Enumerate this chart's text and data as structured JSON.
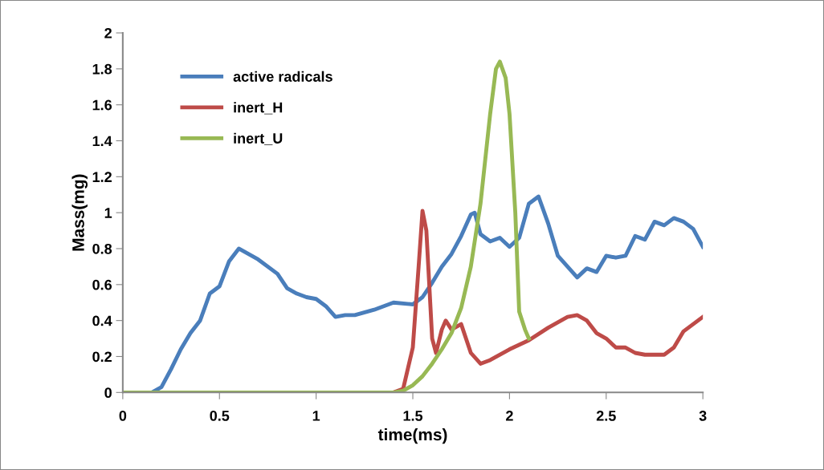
{
  "chart_data": {
    "type": "line",
    "xlabel": "time(ms)",
    "ylabel": "Mass(mg)",
    "xlim": [
      0,
      3
    ],
    "xticks": [
      0,
      0.5,
      1,
      1.5,
      2,
      2.5,
      3
    ],
    "ylim": [
      0,
      2
    ],
    "yticks": [
      0,
      0.2,
      0.4,
      0.6,
      0.8,
      1,
      1.2,
      1.4,
      1.6,
      1.8,
      2
    ],
    "grid": false,
    "legend": "top left",
    "marker": "none",
    "line_style": "solid",
    "series": [
      {
        "name": "active radicals",
        "color": "#4a7ebb",
        "x": [
          0,
          0.15,
          0.2,
          0.25,
          0.3,
          0.35,
          0.4,
          0.45,
          0.5,
          0.55,
          0.6,
          0.65,
          0.7,
          0.8,
          0.85,
          0.9,
          0.95,
          1.0,
          1.05,
          1.1,
          1.15,
          1.2,
          1.3,
          1.4,
          1.5,
          1.55,
          1.6,
          1.65,
          1.7,
          1.75,
          1.8,
          1.82,
          1.85,
          1.9,
          1.95,
          2.0,
          2.05,
          2.1,
          2.15,
          2.2,
          2.25,
          2.3,
          2.35,
          2.4,
          2.45,
          2.5,
          2.55,
          2.6,
          2.65,
          2.7,
          2.75,
          2.8,
          2.85,
          2.9,
          2.95,
          3.0
        ],
        "values": [
          0,
          0,
          0.03,
          0.13,
          0.24,
          0.33,
          0.4,
          0.55,
          0.59,
          0.73,
          0.8,
          0.77,
          0.74,
          0.66,
          0.58,
          0.55,
          0.53,
          0.52,
          0.48,
          0.42,
          0.43,
          0.43,
          0.46,
          0.5,
          0.49,
          0.53,
          0.61,
          0.7,
          0.77,
          0.87,
          0.99,
          1.0,
          0.88,
          0.84,
          0.86,
          0.81,
          0.86,
          1.05,
          1.09,
          0.94,
          0.76,
          0.7,
          0.64,
          0.69,
          0.67,
          0.76,
          0.75,
          0.76,
          0.87,
          0.85,
          0.95,
          0.93,
          0.97,
          0.95,
          0.91,
          0.81
        ]
      },
      {
        "name": "inert_H",
        "color": "#be4b48",
        "x": [
          0,
          1.4,
          1.45,
          1.5,
          1.53,
          1.55,
          1.57,
          1.6,
          1.62,
          1.65,
          1.67,
          1.7,
          1.75,
          1.8,
          1.85,
          1.9,
          2.0,
          2.1,
          2.2,
          2.3,
          2.35,
          2.4,
          2.45,
          2.5,
          2.55,
          2.6,
          2.65,
          2.7,
          2.8,
          2.85,
          2.9,
          3.0
        ],
        "values": [
          0,
          0,
          0.02,
          0.25,
          0.7,
          1.01,
          0.9,
          0.3,
          0.22,
          0.35,
          0.4,
          0.35,
          0.38,
          0.22,
          0.16,
          0.18,
          0.24,
          0.29,
          0.36,
          0.42,
          0.43,
          0.4,
          0.33,
          0.3,
          0.25,
          0.25,
          0.22,
          0.21,
          0.21,
          0.25,
          0.34,
          0.42
        ]
      },
      {
        "name": "inert_U",
        "color": "#98b954",
        "x": [
          0,
          1.4,
          1.45,
          1.5,
          1.55,
          1.6,
          1.65,
          1.7,
          1.75,
          1.8,
          1.85,
          1.9,
          1.93,
          1.95,
          1.98,
          2.0,
          2.03,
          2.05,
          2.08,
          2.1
        ],
        "values": [
          0,
          0,
          0.01,
          0.04,
          0.09,
          0.16,
          0.24,
          0.33,
          0.47,
          0.7,
          1.05,
          1.55,
          1.8,
          1.84,
          1.75,
          1.55,
          1.0,
          0.45,
          0.35,
          0.3
        ]
      }
    ]
  }
}
